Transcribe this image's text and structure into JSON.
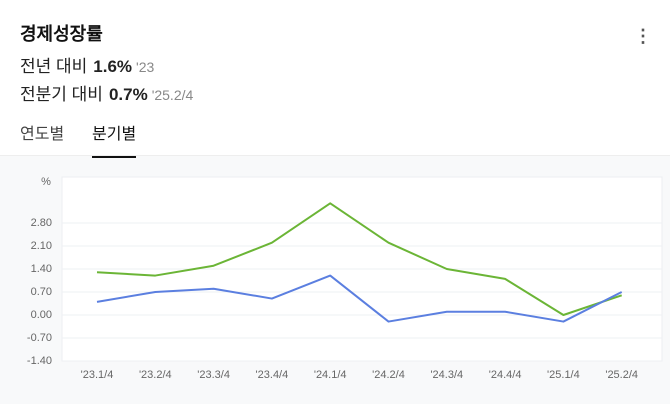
{
  "header": {
    "title": "경제성장률",
    "stats": [
      {
        "label": "전년 대비",
        "value": "1.6%",
        "period": "'23"
      },
      {
        "label": "전분기 대비",
        "value": "0.7%",
        "period": "'25.2/4"
      }
    ]
  },
  "tabs": [
    "연도별",
    "분기별"
  ],
  "selected_tab": 1,
  "chart_data": {
    "type": "line",
    "y_label": "%",
    "categories": [
      "'23.1/4",
      "'23.2/4",
      "'23.3/4",
      "'23.4/4",
      "'24.1/4",
      "'24.2/4",
      "'24.3/4",
      "'24.4/4",
      "'25.1/4",
      "'25.2/4"
    ],
    "series": [
      {
        "color": "#6bb536",
        "values": [
          1.3,
          1.2,
          1.5,
          2.2,
          3.4,
          2.2,
          1.4,
          1.1,
          0.0,
          0.6
        ]
      },
      {
        "color": "#5b7fe0",
        "values": [
          0.4,
          0.7,
          0.8,
          0.5,
          1.2,
          -0.2,
          0.1,
          0.1,
          -0.2,
          0.7
        ]
      }
    ],
    "ylim": [
      -1.4,
      4.2
    ],
    "yticks": [
      {
        "value": -1.4,
        "label": "-1.40"
      },
      {
        "value": -0.7,
        "label": "-0.70"
      },
      {
        "value": 0,
        "label": "0.00"
      },
      {
        "value": 0.7,
        "label": "0.70"
      },
      {
        "value": 1.4,
        "label": "1.40"
      },
      {
        "value": 2.1,
        "label": "2.10"
      },
      {
        "value": 2.8,
        "label": "2.80"
      }
    ],
    "grid": true
  }
}
